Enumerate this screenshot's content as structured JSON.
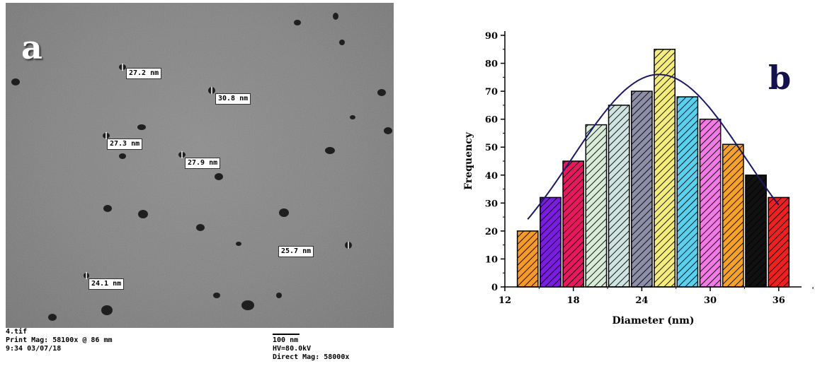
{
  "panel_a": {
    "letter": "a",
    "size_labels": [
      {
        "id": "p1",
        "text": "27.2 nm"
      },
      {
        "id": "p2",
        "text": "30.8 nm"
      },
      {
        "id": "p3",
        "text": "27.3 nm"
      },
      {
        "id": "p4",
        "text": "27.9 nm"
      },
      {
        "id": "p5",
        "text": "25.7 nm"
      },
      {
        "id": "p6",
        "text": "24.1 nm"
      }
    ],
    "footer": {
      "filename": "4.tif",
      "print_mag": "Print Mag: 58100x @ 86 mm",
      "datetime": "9:34 03/07/18",
      "scale_bar_label": "100 nm",
      "hv": "HV=80.0kV",
      "direct_mag": "Direct Mag: 58000x"
    }
  },
  "panel_b": {
    "letter": "b"
  },
  "chart_data": {
    "type": "bar",
    "xlabel": "Diameter (nm)",
    "ylabel": "Frequency",
    "xlim": [
      12,
      38
    ],
    "ylim": [
      0,
      90
    ],
    "x_ticks": [
      12,
      18,
      24,
      30,
      36
    ],
    "y_ticks": [
      0,
      10,
      20,
      30,
      40,
      50,
      60,
      70,
      80,
      90
    ],
    "bin_centers": [
      14,
      16,
      18,
      20,
      22,
      24,
      26,
      28,
      30,
      32,
      34,
      36
    ],
    "values": [
      20,
      32,
      45,
      58,
      65,
      70,
      85,
      68,
      60,
      51,
      40,
      32
    ],
    "bar_colors": [
      "#f39a2a",
      "#7a1de0",
      "#e8185e",
      "#d8ecd8",
      "#cfe3e0",
      "#8d8fa8",
      "#f6ec7c",
      "#59d0ee",
      "#f27ae4",
      "#f6a12a",
      "#111111",
      "#ee2020"
    ],
    "fit_curve": {
      "type": "gaussian",
      "color": "#1b1966",
      "x_range": [
        14,
        36
      ],
      "peak_x": 25.5,
      "peak_y": 76,
      "sigma": 7.6
    }
  }
}
